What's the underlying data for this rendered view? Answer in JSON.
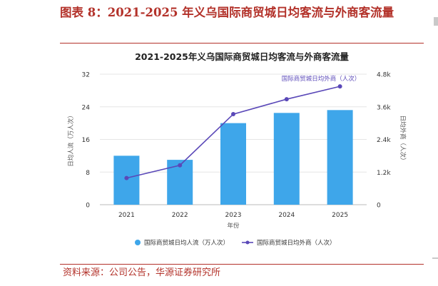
{
  "figure_title": "图表 8：2021-2025 年义乌国际商贸城日均客流与外商客流量",
  "source_note": "资料来源：公司公告，华源证券研究所",
  "chart_data": {
    "type": "bar",
    "title": "2021-2025年义乌国际商贸城日均客流与外商客流量",
    "xlabel": "年份",
    "ylabel": "日均人流（万人次）",
    "y2label": "日均外商（人次）",
    "categories": [
      "2021",
      "2022",
      "2023",
      "2024",
      "2025"
    ],
    "ylim": [
      0,
      32
    ],
    "y2lim": [
      0,
      4800
    ],
    "yticks": [
      "0",
      "8",
      "16",
      "24",
      "32"
    ],
    "y2ticks": [
      "0",
      "1.2k",
      "2.4k",
      "3.6k",
      "4.8k"
    ],
    "series": [
      {
        "name": "国际商贸城日均人流（万人次）",
        "type": "bar",
        "axis": "left",
        "values": [
          12.0,
          11.0,
          20.0,
          22.5,
          23.2
        ]
      },
      {
        "name": "国际商贸城日均外商（人次）",
        "type": "line",
        "axis": "right",
        "values": [
          980,
          1450,
          3330,
          3880,
          4350
        ]
      }
    ],
    "annotation": "国际商贸城日均外商（人次）",
    "colors": {
      "bar": "#3ea6ea",
      "line": "#5a48b8",
      "grid": "#e5e5e5",
      "text": "#333333"
    },
    "grid": true,
    "legend_position": "bottom"
  }
}
